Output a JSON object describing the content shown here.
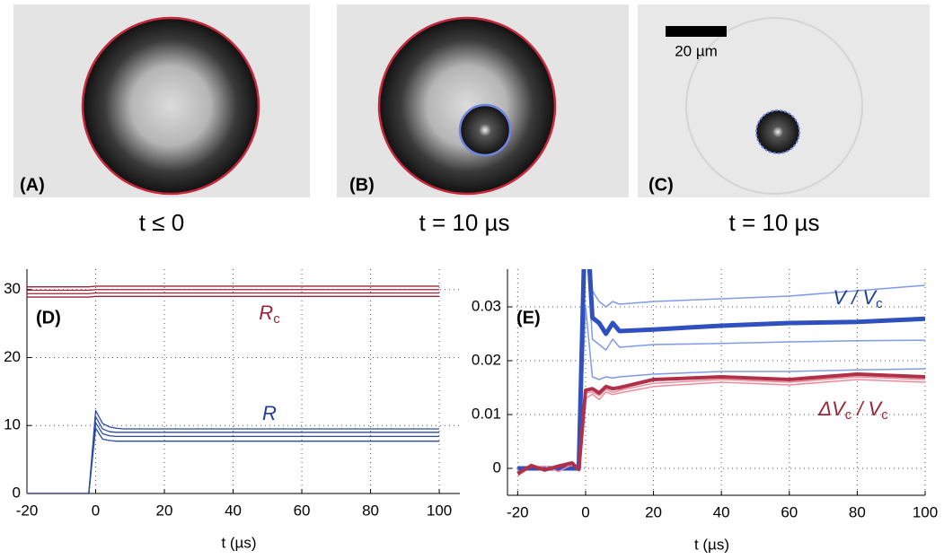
{
  "panels": [
    {
      "label": "(A)",
      "caption": "t ≤ 0"
    },
    {
      "label": "(B)",
      "caption": "t =  10 µs"
    },
    {
      "label": "(C)",
      "caption": "t =  10 µs",
      "scale_bar": "20 µm"
    }
  ],
  "chart_data": [
    {
      "type": "line",
      "panel_label": "(D)",
      "x_label": "t (µs)",
      "xlim": [
        -20,
        106
      ],
      "ylim": [
        0,
        33
      ],
      "xticks": [
        -20,
        0,
        20,
        40,
        60,
        80,
        100
      ],
      "yticks": [
        0,
        10,
        20,
        30
      ],
      "grid": true,
      "annotations": [
        {
          "parts": [
            "R",
            "c"
          ],
          "color": "#9b2335"
        },
        {
          "parts": [
            "R"
          ],
          "color": "#1f3d99"
        }
      ],
      "x": [
        -20,
        -2,
        0,
        2,
        4,
        6,
        8,
        10,
        20,
        40,
        60,
        80,
        100
      ],
      "series": [
        {
          "color": "#9b2335",
          "values": [
            28.9,
            28.9,
            29,
            29,
            29,
            29,
            29,
            29,
            29,
            29,
            29,
            29,
            29
          ]
        },
        {
          "color": "#9b2335",
          "values": [
            29.4,
            29.4,
            29.5,
            29.5,
            29.5,
            29.5,
            29.5,
            29.5,
            29.5,
            29.5,
            29.5,
            29.5,
            29.5
          ]
        },
        {
          "color": "#9b2335",
          "values": [
            29.9,
            29.9,
            30,
            30,
            30,
            30,
            30,
            30,
            30,
            30,
            30,
            30,
            30
          ]
        },
        {
          "color": "#9b2335",
          "values": [
            30.4,
            30.4,
            30.5,
            30.5,
            30.5,
            30.5,
            30.5,
            30.5,
            30.5,
            30.5,
            30.5,
            30.5,
            30.5
          ]
        },
        {
          "color": "#2a4aa8",
          "values": [
            0,
            0,
            12.2,
            10.3,
            9.8,
            9.6,
            9.5,
            9.5,
            9.5,
            9.5,
            9.5,
            9.5,
            9.5
          ]
        },
        {
          "color": "#2a4aa8",
          "values": [
            0,
            0,
            11.3,
            9.5,
            9.1,
            9,
            9,
            9,
            9,
            9,
            9,
            9,
            9
          ]
        },
        {
          "color": "#2a4aa8",
          "values": [
            0,
            0,
            10.4,
            8.8,
            8.5,
            8.4,
            8.4,
            8.4,
            8.4,
            8.4,
            8.4,
            8.4,
            8.4
          ]
        },
        {
          "color": "#2a4aa8",
          "values": [
            0,
            0,
            9.6,
            8,
            7.8,
            7.7,
            7.7,
            7.7,
            7.7,
            7.7,
            7.7,
            7.7,
            7.7
          ]
        }
      ]
    },
    {
      "type": "line",
      "panel_label": "(E)",
      "x_label": "t (µs)",
      "xlim": [
        -23,
        100
      ],
      "ylim": [
        -0.005,
        0.037
      ],
      "xticks": [
        -20,
        0,
        20,
        40,
        60,
        80,
        100
      ],
      "yticks": [
        0,
        0.01,
        0.02,
        0.03
      ],
      "grid": true,
      "annotations": [
        {
          "parts": [
            "V / V",
            "c"
          ],
          "color": "#1f3d99"
        },
        {
          "parts": [
            "ΔV",
            "c",
            " / V",
            "c"
          ],
          "color": "#9b2335"
        }
      ],
      "x": [
        -20,
        -16,
        -12,
        -8,
        -4,
        -2,
        0,
        2,
        4,
        6,
        8,
        10,
        20,
        40,
        60,
        80,
        100
      ],
      "series": [
        {
          "color": "#7f9be8",
          "width": 1.5,
          "values": [
            0,
            0,
            0,
            0,
            0,
            0,
            0.06,
            0.033,
            0.031,
            0.03,
            0.031,
            0.0305,
            0.031,
            0.0315,
            0.032,
            0.033,
            0.034
          ]
        },
        {
          "color": "#7f9be8",
          "width": 1.5,
          "values": [
            0,
            0,
            0,
            0,
            0,
            0,
            0.045,
            0.024,
            0.023,
            0.022,
            0.024,
            0.0225,
            0.023,
            0.0232,
            0.0235,
            0.0237,
            0.0238
          ]
        },
        {
          "color": "#7f9be8",
          "width": 1.5,
          "values": [
            0,
            0,
            0,
            0,
            0,
            0,
            0.03,
            0.017,
            0.0165,
            0.017,
            0.0168,
            0.017,
            0.0175,
            0.018,
            0.018,
            0.0183,
            0.0185
          ]
        },
        {
          "color": "#3050c0",
          "width": 5,
          "values": [
            0,
            0,
            0,
            0,
            0,
            0,
            0.05,
            0.028,
            0.027,
            0.025,
            0.027,
            0.0255,
            0.0258,
            0.0265,
            0.027,
            0.0272,
            0.0278
          ]
        },
        {
          "color": "#f08a9a",
          "width": 1.5,
          "values": [
            -0.0015,
            0.0008,
            -0.0005,
            0.0006,
            0.0012,
            -0.0004,
            0.013,
            0.0138,
            0.0128,
            0.0142,
            0.0137,
            0.014,
            0.0152,
            0.016,
            0.0155,
            0.0165,
            0.016
          ]
        },
        {
          "color": "#f08a9a",
          "width": 1.5,
          "values": [
            -0.0008,
            0.0002,
            0.0004,
            -0.0006,
            0.0007,
            0.0002,
            0.014,
            0.0142,
            0.0135,
            0.0147,
            0.0141,
            0.0145,
            0.0158,
            0.0165,
            0.016,
            0.017,
            0.0165
          ]
        },
        {
          "color": "#b03048",
          "width": 4,
          "values": [
            -0.001,
            0.0005,
            -0.0003,
            0.0004,
            0.001,
            -0.0002,
            0.0145,
            0.0148,
            0.014,
            0.0152,
            0.0148,
            0.015,
            0.0165,
            0.017,
            0.0165,
            0.0175,
            0.017
          ]
        }
      ]
    }
  ]
}
